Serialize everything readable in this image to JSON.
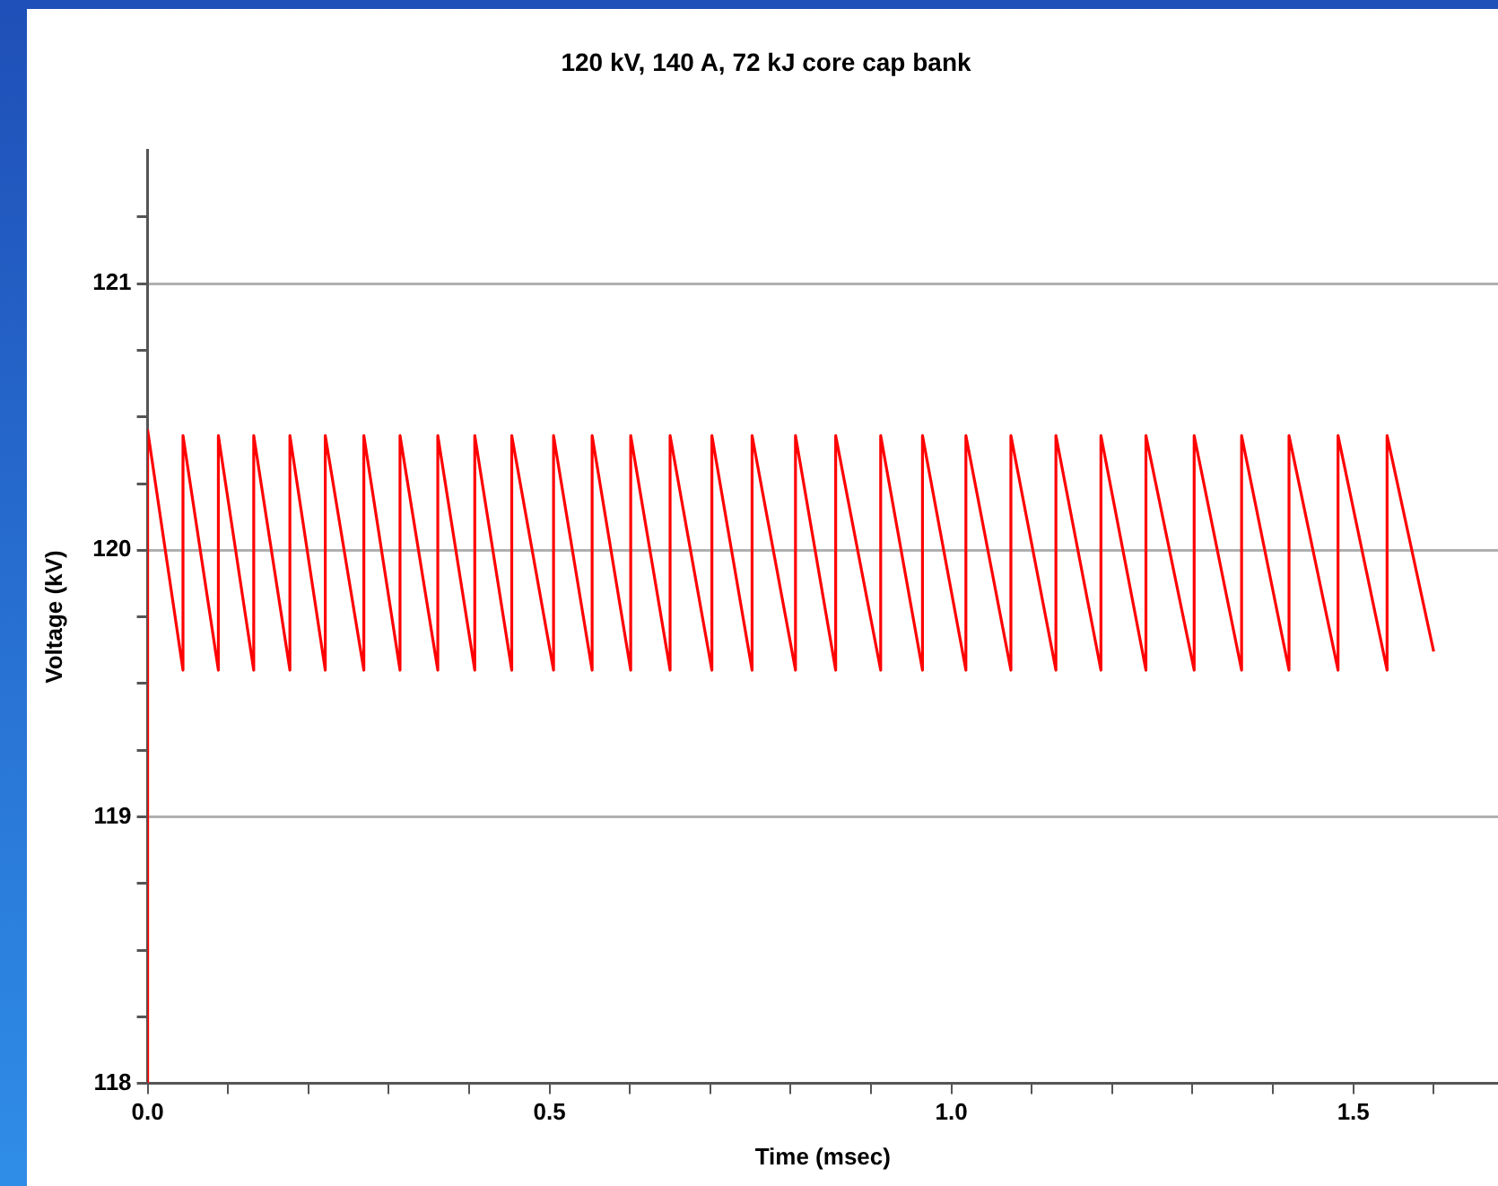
{
  "chart_data": {
    "type": "line",
    "title": "120 kV, 140 A, 72 kJ core cap bank",
    "xlabel": "Time (msec)",
    "ylabel": "Voltage (kV)",
    "series": [
      {
        "color": "#ff0000",
        "x": [
          0,
          0,
          0.044,
          0.044,
          0.088,
          0.088,
          0.132,
          0.132,
          0.177,
          0.177,
          0.221,
          0.221,
          0.269,
          0.269,
          0.314,
          0.314,
          0.361,
          0.361,
          0.407,
          0.407,
          0.453,
          0.453,
          0.505,
          0.505,
          0.553,
          0.553,
          0.601,
          0.601,
          0.65,
          0.65,
          0.702,
          0.702,
          0.752,
          0.752,
          0.806,
          0.806,
          0.856,
          0.856,
          0.912,
          0.912,
          0.964,
          0.964,
          1.018,
          1.018,
          1.074,
          1.074,
          1.13,
          1.13,
          1.186,
          1.186,
          1.242,
          1.242,
          1.302,
          1.302,
          1.361,
          1.361,
          1.42,
          1.42,
          1.481,
          1.481,
          1.542,
          1.542,
          1.6
        ],
        "values": [
          118,
          120.45,
          119.55,
          120.43,
          119.55,
          120.43,
          119.55,
          120.43,
          119.55,
          120.43,
          119.55,
          120.43,
          119.55,
          120.43,
          119.55,
          120.43,
          119.55,
          120.43,
          119.55,
          120.43,
          119.55,
          120.43,
          119.55,
          120.43,
          119.55,
          120.43,
          119.55,
          120.43,
          119.55,
          120.43,
          119.55,
          120.43,
          119.55,
          120.43,
          119.55,
          120.43,
          119.55,
          120.43,
          119.55,
          120.43,
          119.55,
          120.43,
          119.55,
          120.43,
          119.55,
          120.43,
          119.55,
          120.43,
          119.55,
          120.43,
          119.55,
          120.43,
          119.55,
          120.43,
          119.55,
          120.43,
          119.55,
          120.43,
          119.55,
          120.43,
          119.55,
          120.43,
          119.62
        ]
      }
    ],
    "xlim": [
      0,
      1.68
    ],
    "xticks": [
      {
        "value": 0,
        "label": "0.0"
      },
      {
        "value": 0.1,
        "label": null
      },
      {
        "value": 0.2,
        "label": null
      },
      {
        "value": 0.3,
        "label": null
      },
      {
        "value": 0.4,
        "label": null
      },
      {
        "value": 0.5,
        "label": "0.5"
      },
      {
        "value": 0.6,
        "label": null
      },
      {
        "value": 0.7,
        "label": null
      },
      {
        "value": 0.8,
        "label": null
      },
      {
        "value": 0.9,
        "label": null
      },
      {
        "value": 1,
        "label": "1.0"
      },
      {
        "value": 1.1,
        "label": null
      },
      {
        "value": 1.2,
        "label": null
      },
      {
        "value": 1.3,
        "label": null
      },
      {
        "value": 1.4,
        "label": null
      },
      {
        "value": 1.5,
        "label": "1.5"
      },
      {
        "value": 1.6,
        "label": null
      }
    ],
    "ylim": [
      118,
      121.5
    ],
    "yticks": [
      118,
      {
        "value": 118.25,
        "label": null
      },
      {
        "value": 118.5,
        "label": null
      },
      {
        "value": 118.75,
        "label": null
      },
      119,
      {
        "value": 119.25,
        "label": null
      },
      {
        "value": 119.5,
        "label": null
      },
      {
        "value": 119.75,
        "label": null
      },
      120,
      {
        "value": 120.25,
        "label": null
      },
      {
        "value": 120.5,
        "label": null
      },
      {
        "value": 120.75,
        "label": null
      },
      121,
      {
        "value": 121.25,
        "label": null
      }
    ],
    "grid": "y",
    "legend": false,
    "marker": "none",
    "line_style": "solid"
  }
}
